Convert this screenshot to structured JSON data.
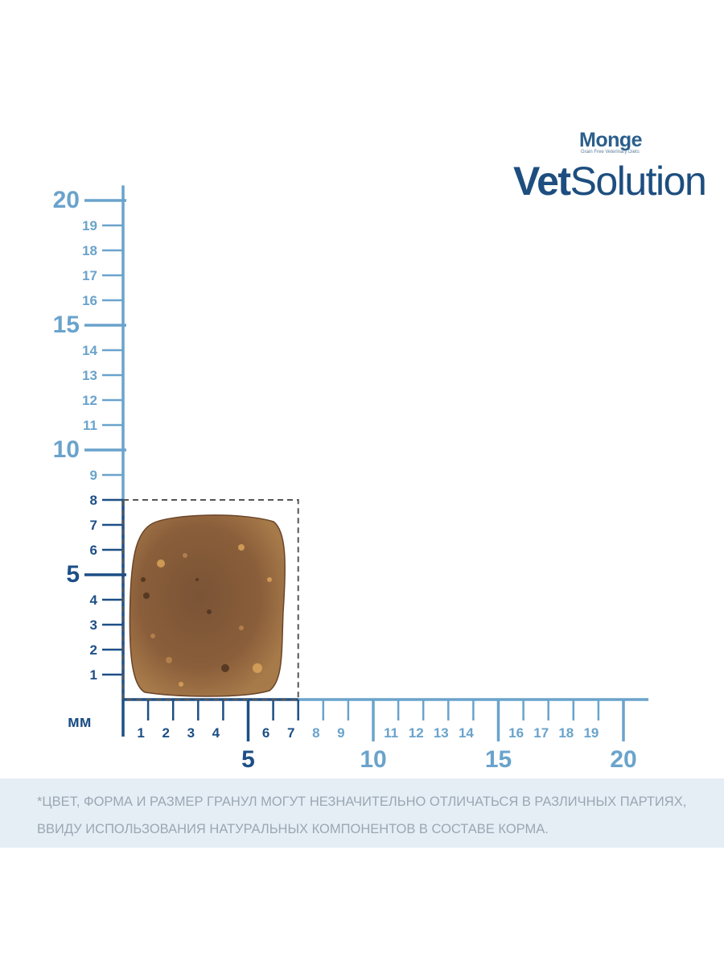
{
  "brand": {
    "monge_logo_text": "Monge",
    "monge_tagline": "Grain Free Veterinary Diets",
    "product_bold": "Vet",
    "product_regular": "Solution"
  },
  "ruler": {
    "unit_label": "мм",
    "y_axis": {
      "major_labels": [
        "5",
        "10",
        "15",
        "20"
      ],
      "minor_labels": [
        "1",
        "2",
        "3",
        "4",
        "6",
        "7",
        "8",
        "9",
        "11",
        "12",
        "13",
        "14",
        "16",
        "17",
        "18",
        "19"
      ]
    },
    "x_axis": {
      "major_labels": [
        "5",
        "10",
        "15",
        "20"
      ],
      "minor_labels": [
        "1",
        "2",
        "3",
        "4",
        "6",
        "7",
        "8",
        "9",
        "11",
        "12",
        "13",
        "14",
        "16",
        "17",
        "18",
        "19"
      ]
    },
    "highlight": {
      "width_mm": 7,
      "height_mm": 8
    },
    "colors": {
      "dark": "#1d4f86",
      "light": "#6aa3cc",
      "kibble": "#8a5e3a"
    }
  },
  "disclaimer": {
    "line1": "*ЦВЕТ, ФОРМА И РАЗМЕР ГРАНУЛ МОГУТ НЕЗНАЧИТЕЛЬНО ОТЛИЧАТЬСЯ В РАЗЛИЧНЫХ ПАРТИЯХ,",
    "line2": "ВВИДУ ИСПОЛЬЗОВАНИЯ НАТУРАЛЬНЫХ КОМПОНЕНТОВ В СОСТАВЕ КОРМА."
  }
}
